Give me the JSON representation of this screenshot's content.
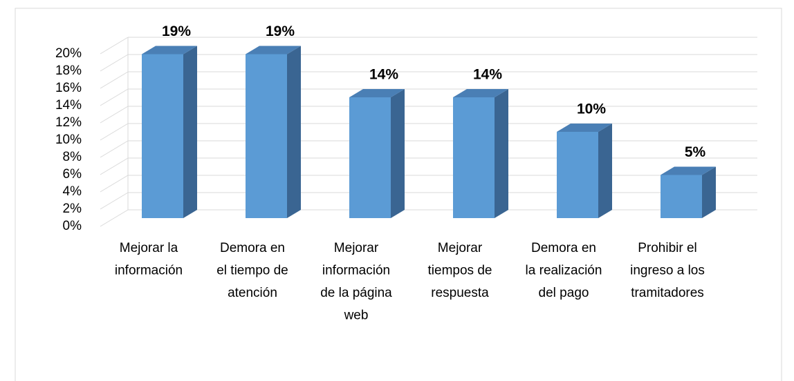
{
  "chart_data": {
    "type": "bar3d",
    "categories": [
      "Mejorar la\ninformación",
      "Demora en\nel tiempo de\natención",
      "Mejorar\ninformación\nde la página\nweb",
      "Mejorar\ntiempos de\nrespuesta",
      "Demora en\nla realización\ndel pago",
      "Prohibir el\ningreso a los\ntramitadores"
    ],
    "values": [
      19,
      19,
      14,
      14,
      10,
      5
    ],
    "value_labels": [
      "19%",
      "19%",
      "14%",
      "14%",
      "10%",
      "5%"
    ],
    "color": "#5b9bd5",
    "ylim": [
      0,
      20
    ],
    "yticks": [
      {
        "value": 0,
        "label": "0%"
      },
      {
        "value": 2,
        "label": "2%"
      },
      {
        "value": 4,
        "label": "4%"
      },
      {
        "value": 6,
        "label": "6%"
      },
      {
        "value": 8,
        "label": "8%"
      },
      {
        "value": 10,
        "label": "10%"
      },
      {
        "value": 12,
        "label": "12%"
      },
      {
        "value": 14,
        "label": "14%"
      },
      {
        "value": 16,
        "label": "16%"
      },
      {
        "value": 18,
        "label": "18%"
      },
      {
        "value": 20,
        "label": "20%"
      }
    ],
    "grid": true
  }
}
